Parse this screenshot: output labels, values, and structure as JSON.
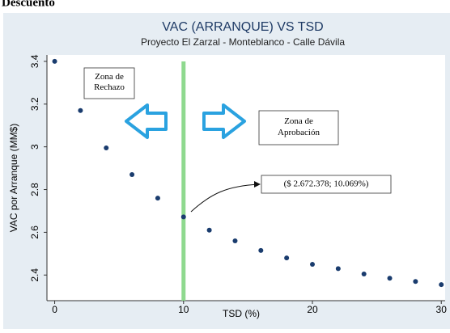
{
  "page_header": "Descuento",
  "chart_data": {
    "type": "scatter",
    "title": "VAC (ARRANQUE) VS TSD",
    "subtitle": "Proyecto El Zarzal - Monteblanco - Calle Dávila",
    "x_label": "TSD (%)",
    "y_label": "VAC por Arranque (MM$)",
    "x": [
      0,
      2,
      4,
      6,
      8,
      10,
      12,
      14,
      16,
      18,
      20,
      22,
      24,
      26,
      28,
      30
    ],
    "values": [
      3.4,
      3.17,
      2.995,
      2.87,
      2.76,
      2.672,
      2.61,
      2.56,
      2.515,
      2.48,
      2.45,
      2.43,
      2.405,
      2.385,
      2.37,
      2.355
    ],
    "color": "#1a3c6e",
    "xlim": [
      -0.6,
      30.3
    ],
    "ylim": [
      2.28,
      3.43
    ],
    "xticks": [
      0,
      10,
      20,
      30
    ],
    "yticks": [
      2.4,
      2.6,
      2.8,
      3,
      3.2,
      3.4
    ],
    "vline": 10,
    "vline_color": "#8fd98f",
    "annotations": {
      "reject": "Zona de Rechazo",
      "approve": "Zona de Aprobación",
      "point": "($ 2.672.378; 10.069%)"
    }
  }
}
